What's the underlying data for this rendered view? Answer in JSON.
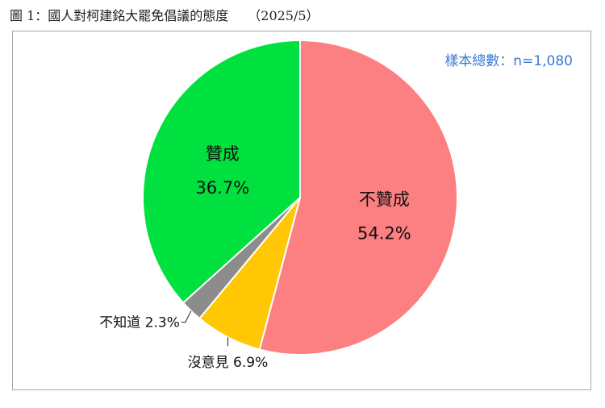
{
  "title": "圖 1：國人對柯建銘大罷免倡議的態度　　（2025/5）",
  "sample_label": "樣本總數：n=1,080",
  "chart_data": {
    "type": "pie",
    "title": "圖 1：國人對柯建銘大罷免倡議的態度　　（2025/5）",
    "annotation": "樣本總數：n=1,080",
    "slices": [
      {
        "label": "不贊成",
        "value": 54.2,
        "value_text": "54.2%",
        "color": "#fc7f82"
      },
      {
        "label": "沒意見",
        "value": 6.9,
        "value_text": "6.9%",
        "color": "#ffc704"
      },
      {
        "label": "不知道",
        "value": 2.3,
        "value_text": "2.3%",
        "color": "#8c8c8c"
      },
      {
        "label": "贊成",
        "value": 36.7,
        "value_text": "36.7%",
        "color": "#00e03e"
      }
    ]
  }
}
